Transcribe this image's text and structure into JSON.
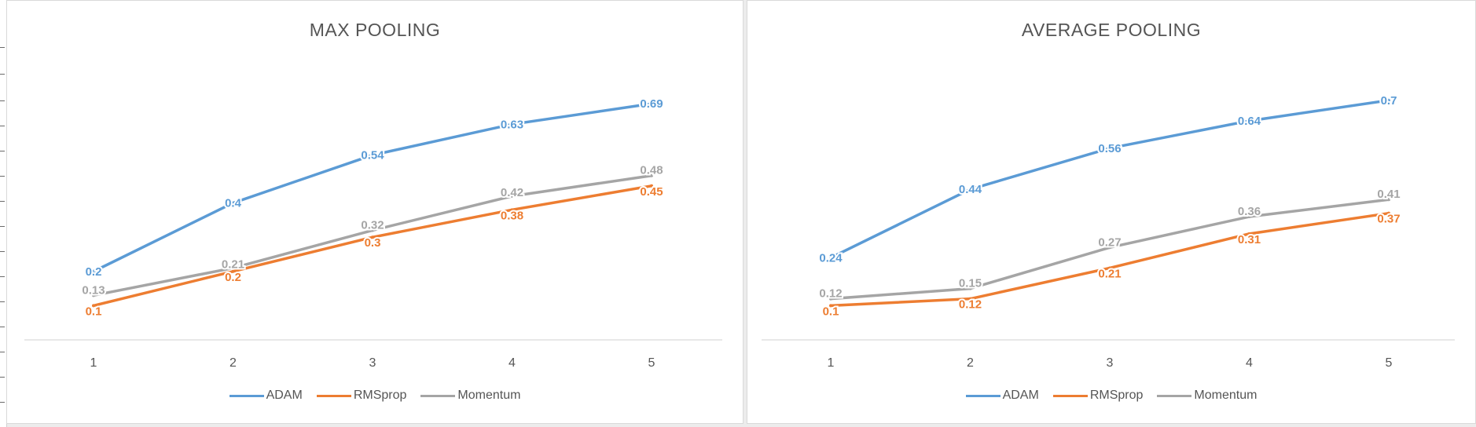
{
  "colors": {
    "ADAM": "#5b9bd5",
    "RMSprop": "#ed7d31",
    "Momentum": "#a5a5a5",
    "axis": "#d9d9d9",
    "text": "#555555"
  },
  "chart_data": [
    {
      "type": "line",
      "title": "MAX POOLING",
      "x": [
        1,
        2,
        3,
        4,
        5
      ],
      "series": [
        {
          "name": "ADAM",
          "values": [
            0.2,
            0.4,
            0.54,
            0.63,
            0.69
          ],
          "labels": [
            "0.2",
            "0.4",
            "0.54",
            "0.63",
            "0.69"
          ]
        },
        {
          "name": "RMSprop",
          "values": [
            0.1,
            0.2,
            0.3,
            0.38,
            0.45
          ],
          "labels": [
            "0.1",
            "0.2",
            "0.3",
            "0.38",
            "0.45"
          ]
        },
        {
          "name": "Momentum",
          "values": [
            0.13,
            0.21,
            0.32,
            0.42,
            0.48
          ],
          "labels": [
            "0.13",
            "0.21",
            "0.32",
            "0.42",
            "0.48"
          ]
        }
      ],
      "ylim": [
        0,
        0.8
      ],
      "grid": false,
      "legend": "bottom"
    },
    {
      "type": "line",
      "title": "AVERAGE POOLING",
      "x": [
        1,
        2,
        3,
        4,
        5
      ],
      "series": [
        {
          "name": "ADAM",
          "values": [
            0.24,
            0.44,
            0.56,
            0.64,
            0.7
          ],
          "labels": [
            "0.24",
            "0.44",
            "0.56",
            "0.64",
            "0.7"
          ]
        },
        {
          "name": "RMSprop",
          "values": [
            0.1,
            0.12,
            0.21,
            0.31,
            0.37
          ],
          "labels": [
            "0.1",
            "0.12",
            "0.21",
            "0.31",
            "0.37"
          ]
        },
        {
          "name": "Momentum",
          "values": [
            0.12,
            0.15,
            0.27,
            0.36,
            0.41
          ],
          "labels": [
            "0.12",
            "0.15",
            "0.27",
            "0.36",
            "0.41"
          ]
        }
      ],
      "ylim": [
        0,
        0.8
      ],
      "grid": false,
      "legend": "bottom"
    }
  ]
}
